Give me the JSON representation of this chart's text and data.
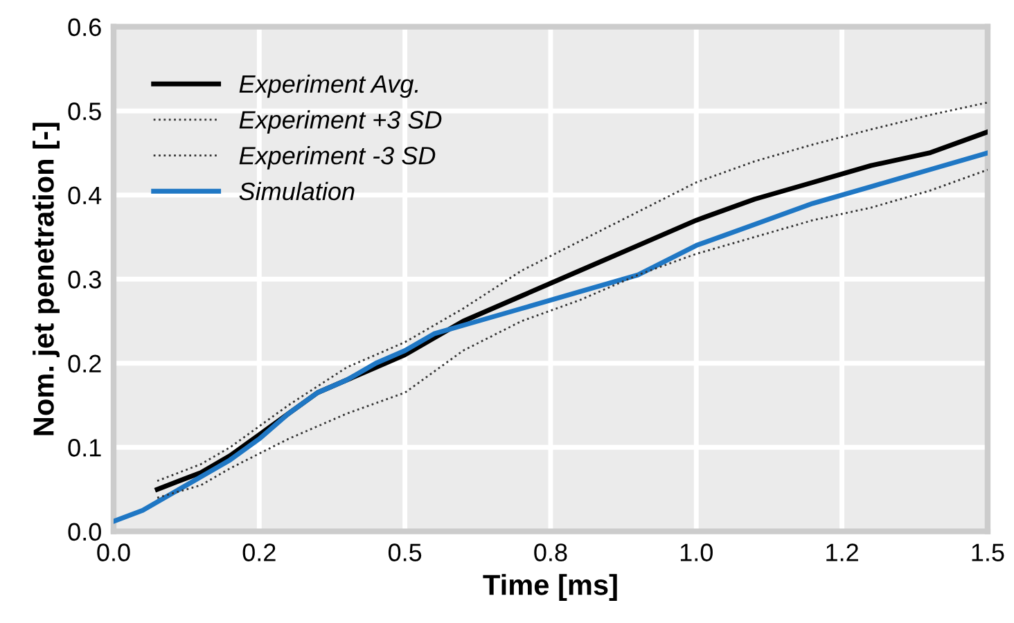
{
  "chart_data": {
    "type": "line",
    "xlabel": "Time [ms]",
    "ylabel": "Nom. jet penetration [-]",
    "xlim": [
      0,
      1.5
    ],
    "ylim": [
      0,
      0.6
    ],
    "xticks": [
      {
        "value": 0,
        "label": "0.0"
      },
      {
        "value": 0.25,
        "label": "0.2"
      },
      {
        "value": 0.5,
        "label": "0.5"
      },
      {
        "value": 0.75,
        "label": "0.8"
      },
      {
        "value": 1.0,
        "label": "1.0"
      },
      {
        "value": 1.25,
        "label": "1.2"
      },
      {
        "value": 1.5,
        "label": "1.5"
      }
    ],
    "yticks": [
      {
        "value": 0,
        "label": "0.0"
      },
      0.1,
      0.2,
      0.3,
      0.4,
      0.5,
      0.6
    ],
    "grid": true,
    "legend": "top left",
    "series": [
      {
        "name": "Experiment Avg.",
        "color": "#000000",
        "line_style": "solid",
        "x": [
          0.075,
          0.15,
          0.2,
          0.25,
          0.3,
          0.35,
          0.4,
          0.45,
          0.5,
          0.55,
          0.6,
          0.7,
          0.8,
          0.9,
          1.0,
          1.1,
          1.2,
          1.3,
          1.4,
          1.5
        ],
        "values": [
          0.05,
          0.07,
          0.09,
          0.115,
          0.14,
          0.165,
          0.18,
          0.195,
          0.21,
          0.23,
          0.25,
          0.28,
          0.31,
          0.34,
          0.37,
          0.395,
          0.415,
          0.435,
          0.45,
          0.475
        ]
      },
      {
        "name": "Experiment +3 SD",
        "color": "#333333",
        "line_style": "dotted",
        "x": [
          0.075,
          0.15,
          0.2,
          0.3,
          0.4,
          0.5,
          0.6,
          0.7,
          0.8,
          0.9,
          1.0,
          1.1,
          1.2,
          1.3,
          1.4,
          1.5
        ],
        "values": [
          0.06,
          0.08,
          0.1,
          0.15,
          0.195,
          0.225,
          0.265,
          0.31,
          0.345,
          0.38,
          0.415,
          0.44,
          0.46,
          0.478,
          0.495,
          0.51
        ]
      },
      {
        "name": "Experiment -3 SD",
        "color": "#333333",
        "line_style": "dotted",
        "x": [
          0.075,
          0.15,
          0.2,
          0.3,
          0.4,
          0.5,
          0.6,
          0.7,
          0.8,
          0.9,
          1.0,
          1.1,
          1.2,
          1.3,
          1.4,
          1.5
        ],
        "values": [
          0.04,
          0.055,
          0.075,
          0.11,
          0.14,
          0.165,
          0.215,
          0.25,
          0.275,
          0.305,
          0.33,
          0.35,
          0.37,
          0.385,
          0.405,
          0.43
        ]
      },
      {
        "name": "Simulation",
        "color": "#1f77c4",
        "line_style": "solid",
        "x": [
          0,
          0.05,
          0.1,
          0.15,
          0.2,
          0.25,
          0.3,
          0.35,
          0.4,
          0.45,
          0.5,
          0.55,
          0.6,
          0.7,
          0.8,
          0.9,
          1.0,
          1.1,
          1.2,
          1.3,
          1.4,
          1.5
        ],
        "values": [
          0.012,
          0.025,
          0.045,
          0.065,
          0.085,
          0.11,
          0.14,
          0.165,
          0.18,
          0.2,
          0.215,
          0.235,
          0.245,
          0.265,
          0.285,
          0.305,
          0.34,
          0.365,
          0.39,
          0.41,
          0.43,
          0.45
        ]
      }
    ]
  }
}
